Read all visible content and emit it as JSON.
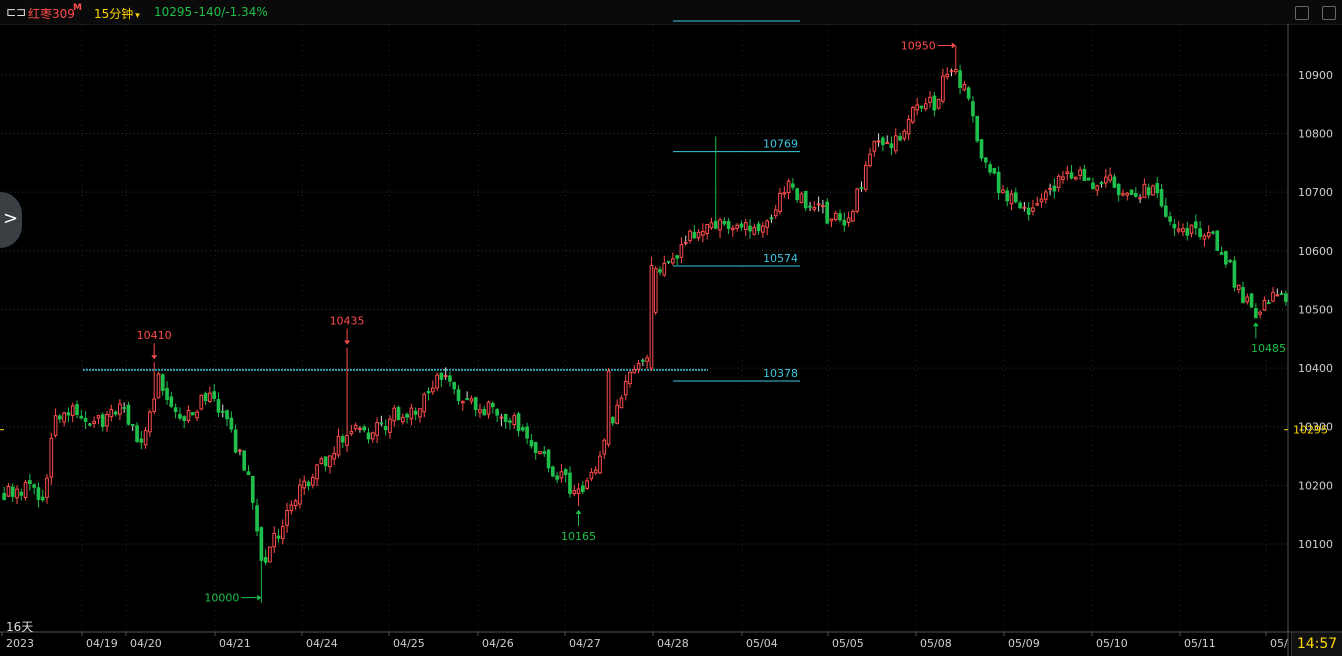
{
  "header": {
    "symbol": "红枣309",
    "symbol_badge": "M",
    "period": "15分钟",
    "period_caret": "▾",
    "price": "10295",
    "change": "-140/-1.34%"
  },
  "footer": {
    "range_label": "16天",
    "clock": "14:57"
  },
  "colors": {
    "up": "#ff4d4d",
    "down": "#1fbf4b",
    "level": "#3cc8e0",
    "axis_text": "#cfcfcf",
    "price_tag": "#ffd700",
    "grid": "#3a3a3a"
  },
  "chart_data": {
    "type": "candlestick",
    "ylim": [
      9950,
      10985
    ],
    "y_ticks": [
      10100,
      10200,
      10300,
      10400,
      10500,
      10600,
      10700,
      10800,
      10900
    ],
    "current_price": 10295,
    "x_labels": [
      "2023",
      "04/19",
      "04/20",
      "04/21",
      "04/24",
      "04/25",
      "04/26",
      "04/27",
      "04/28",
      "05/04",
      "05/05",
      "05/08",
      "05/09",
      "05/10",
      "05/11",
      "05/"
    ],
    "levels": [
      {
        "value": 10769,
        "label": "10769"
      },
      {
        "value": 10574,
        "label": "10574"
      },
      {
        "value": 10378,
        "label": "10378"
      }
    ],
    "annotations": [
      {
        "value": 10410,
        "label": "10410",
        "kind": "high"
      },
      {
        "value": 10435,
        "label": "10435",
        "kind": "high"
      },
      {
        "value": 10950,
        "label": "10950",
        "kind": "high"
      },
      {
        "value": 10000,
        "label": "10000",
        "kind": "low"
      },
      {
        "value": 10165,
        "label": "10165",
        "kind": "low"
      },
      {
        "value": 10485,
        "label": "10485",
        "kind": "low"
      }
    ],
    "anchors": [
      [
        1,
        10190
      ],
      [
        6,
        10200
      ],
      [
        9,
        10170
      ],
      [
        12,
        10320
      ],
      [
        15,
        10330
      ],
      [
        21,
        10300
      ],
      [
        27,
        10330
      ],
      [
        32,
        10270
      ],
      [
        36,
        10380
      ],
      [
        42,
        10310
      ],
      [
        48,
        10360
      ],
      [
        51,
        10320
      ],
      [
        57,
        10210
      ],
      [
        60,
        10060
      ],
      [
        64,
        10120
      ],
      [
        70,
        10200
      ],
      [
        75,
        10240
      ],
      [
        81,
        10300
      ],
      [
        86,
        10290
      ],
      [
        91,
        10320
      ],
      [
        96,
        10320
      ],
      [
        102,
        10390
      ],
      [
        107,
        10350
      ],
      [
        112,
        10330
      ],
      [
        118,
        10320
      ],
      [
        123,
        10280
      ],
      [
        128,
        10220
      ],
      [
        132,
        10200
      ],
      [
        135,
        10185
      ],
      [
        139,
        10240
      ],
      [
        141,
        10300
      ],
      [
        145,
        10380
      ],
      [
        150,
        10420
      ],
      [
        152,
        10560
      ],
      [
        156,
        10580
      ],
      [
        161,
        10630
      ],
      [
        167,
        10650
      ],
      [
        172,
        10640
      ],
      [
        178,
        10640
      ],
      [
        183,
        10720
      ],
      [
        187,
        10680
      ],
      [
        192,
        10660
      ],
      [
        197,
        10650
      ],
      [
        203,
        10780
      ],
      [
        208,
        10790
      ],
      [
        212,
        10840
      ],
      [
        217,
        10850
      ],
      [
        221,
        10920
      ],
      [
        225,
        10860
      ],
      [
        228,
        10760
      ],
      [
        233,
        10700
      ],
      [
        238,
        10670
      ],
      [
        243,
        10700
      ],
      [
        248,
        10730
      ],
      [
        253,
        10720
      ],
      [
        258,
        10720
      ],
      [
        263,
        10690
      ],
      [
        268,
        10710
      ],
      [
        272,
        10660
      ],
      [
        276,
        10630
      ],
      [
        281,
        10630
      ],
      [
        285,
        10590
      ],
      [
        288,
        10530
      ],
      [
        292,
        10485
      ],
      [
        294,
        10510
      ],
      [
        296,
        10520
      ]
    ]
  }
}
